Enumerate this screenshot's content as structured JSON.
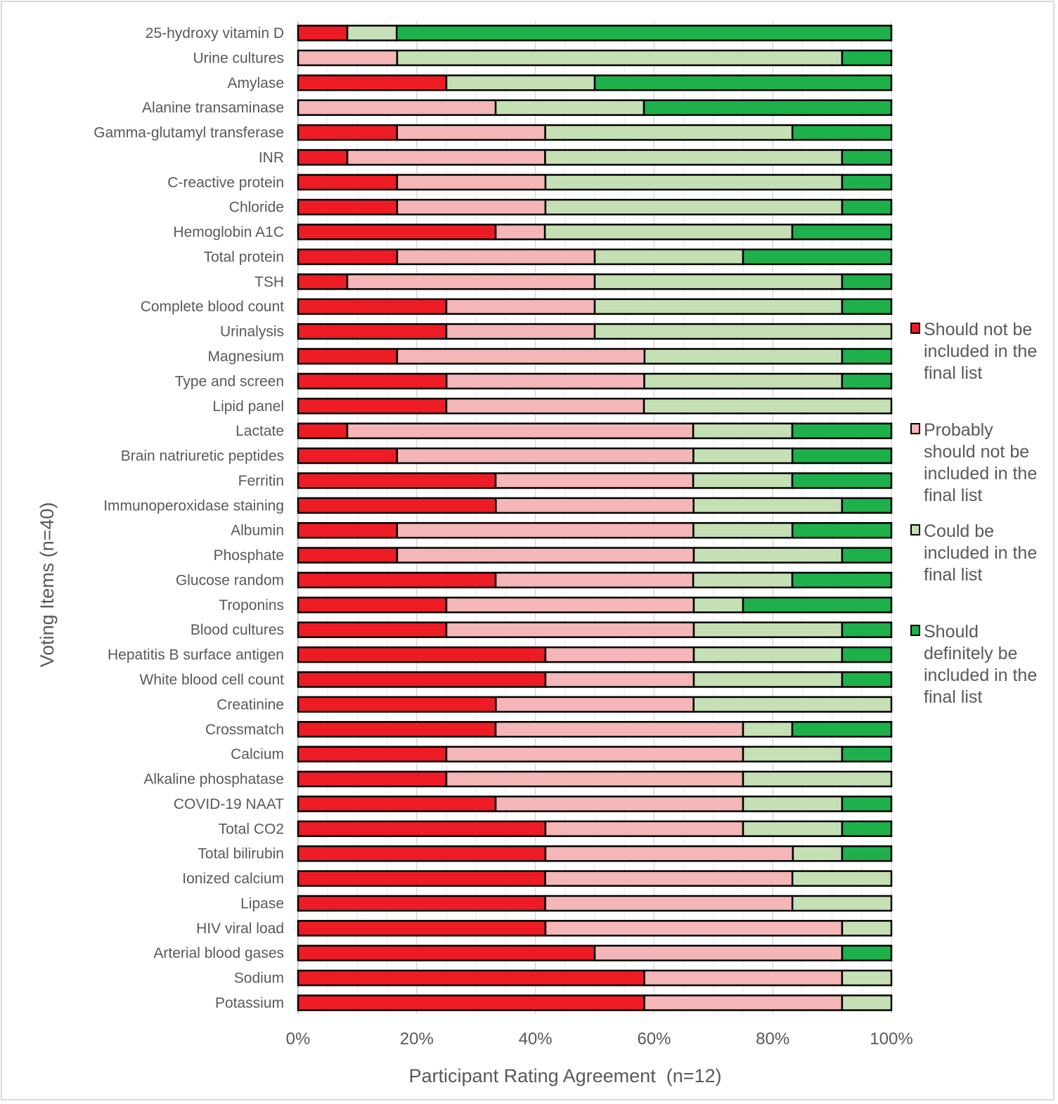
{
  "chart_data": {
    "type": "bar",
    "orientation": "horizontal",
    "stacked": "percent",
    "xlabel": "Participant Rating Agreement  (n=12)",
    "ylabel": "Voting Items (n=40)",
    "xlim": [
      0,
      100
    ],
    "xticks": [
      "0%",
      "20%",
      "40%",
      "60%",
      "80%",
      "100%"
    ],
    "grid": true,
    "legend_position": "right",
    "categories": [
      "25-hydroxy vitamin D",
      "Urine cultures",
      "Amylase",
      "Alanine transaminase",
      "Gamma-glutamyl transferase",
      "INR",
      "C-reactive protein",
      "Chloride",
      "Hemoglobin A1C",
      "Total protein",
      "TSH",
      "Complete blood count",
      "Urinalysis",
      "Magnesium",
      "Type and screen",
      "Lipid panel",
      "Lactate",
      "Brain natriuretic peptides",
      "Ferritin",
      "Immunoperoxidase staining",
      "Albumin",
      "Phosphate",
      "Glucose random",
      "Troponins",
      "Blood cultures",
      "Hepatitis B surface antigen",
      "White blood cell count",
      "Creatinine",
      "Crossmatch",
      "Calcium",
      "Alkaline phosphatase",
      "COVID-19 NAAT",
      "Total CO2",
      "Total bilirubin",
      "Ionized calcium",
      "Lipase",
      "HIV viral load",
      "Arterial blood gases",
      "Sodium",
      "Potassium"
    ],
    "series": [
      {
        "name": "Should not be included in the final list",
        "color": "#ED1C24",
        "values": [
          8.3,
          0,
          25,
          0,
          16.7,
          8.3,
          16.7,
          16.7,
          33.3,
          16.7,
          8.3,
          25,
          25,
          16.7,
          25,
          25,
          8.3,
          16.7,
          33.3,
          33.3,
          16.7,
          16.7,
          33.3,
          25,
          25,
          41.7,
          41.7,
          33.3,
          33.3,
          25,
          25,
          33.3,
          41.7,
          41.7,
          41.7,
          41.7,
          41.7,
          50,
          58.3,
          58.3
        ]
      },
      {
        "name": "Probably should not be included in the final list",
        "color": "#F4B6B6",
        "values": [
          0,
          16.7,
          0,
          33.3,
          25,
          33.3,
          25,
          25,
          8.3,
          33.3,
          41.7,
          25,
          25,
          41.7,
          33.3,
          33.3,
          58.3,
          50,
          33.3,
          33.3,
          50,
          50,
          33.3,
          41.7,
          41.7,
          25,
          25,
          33.3,
          41.7,
          50,
          50,
          41.7,
          33.3,
          41.7,
          41.7,
          41.7,
          50,
          41.7,
          33.3,
          33.3
        ]
      },
      {
        "name": "Could be included in the final list",
        "color": "#C5E0B4",
        "values": [
          8.3,
          75,
          25,
          25,
          41.7,
          50,
          50,
          50,
          41.7,
          25,
          41.7,
          41.7,
          50,
          33.3,
          33.3,
          41.7,
          16.7,
          16.7,
          16.7,
          25,
          16.7,
          25,
          16.7,
          8.3,
          25,
          25,
          25,
          33.3,
          8.3,
          16.7,
          25,
          16.7,
          16.7,
          8.3,
          16.7,
          16.7,
          8.3,
          0,
          8.3,
          8.3
        ]
      },
      {
        "name": "Should definitely be included in the final list",
        "color": "#1EB04A",
        "values": [
          83.3,
          8.3,
          50,
          41.7,
          16.7,
          8.3,
          8.3,
          8.3,
          16.7,
          25,
          8.3,
          8.3,
          0,
          8.3,
          8.3,
          0,
          16.7,
          16.7,
          16.7,
          8.3,
          16.7,
          8.3,
          16.7,
          25,
          8.3,
          8.3,
          8.3,
          0,
          16.7,
          8.3,
          0,
          8.3,
          8.3,
          8.3,
          0,
          0,
          0,
          8.3,
          0,
          0
        ]
      }
    ],
    "legend": [
      {
        "lines": [
          "Should not be",
          "included in the",
          "final list"
        ]
      },
      {
        "lines": [
          "Probably",
          "should not be",
          "included in the",
          "final list"
        ]
      },
      {
        "lines": [
          "Could be",
          "included in the",
          "final list"
        ]
      },
      {
        "lines": [
          "Should",
          "definitely be",
          "included in the",
          "final list"
        ]
      }
    ]
  }
}
